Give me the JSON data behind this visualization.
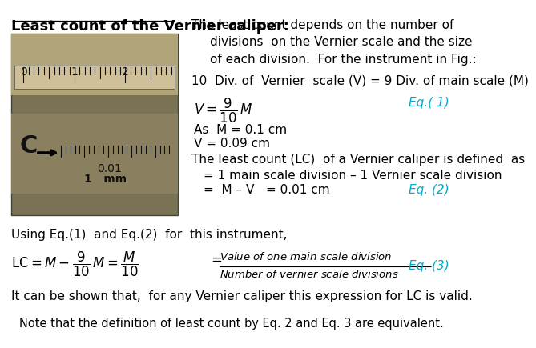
{
  "bg_color": "#ffffff",
  "title_text": "Least count of the Vernier caliper:",
  "title_color": "#000000",
  "line1": "The least count depends on the number of",
  "line2": "divisions  on the Vernier scale and the size",
  "line3": "of each division.  For the instrument in Fig.:",
  "line4": "10  Div. of  Vernier  scale (V) = 9 Div. of main scale (M)",
  "eq1_label": "Eq.( 1)",
  "eq1_color": "#00aacc",
  "line5": "As  M = 0.1 cm",
  "line6": "V = 0.09 cm",
  "line7": "The least count (LC)  of a Vernier caliper is defined  as",
  "line8": "= 1 main scale division – 1 Vernier scale division",
  "line9": "=  M – V   = 0.01 cm",
  "eq2_label": "Eq. (2)",
  "eq2_color": "#00aacc",
  "line10": "Using Eq.(1)  and Eq.(2)  for  this instrument,",
  "eq3_label": "Eq. (3)",
  "eq3_color": "#00aacc",
  "line11": "It can be shown that,  for any Vernier caliper this expression for LC is valid.",
  "line12": "Note that the definition of least count by Eq. 2 and Eq. 3 are equivalent.",
  "text_color": "#000000",
  "font_size_title": 13,
  "font_size_body": 11,
  "font_size_note": 10.5
}
